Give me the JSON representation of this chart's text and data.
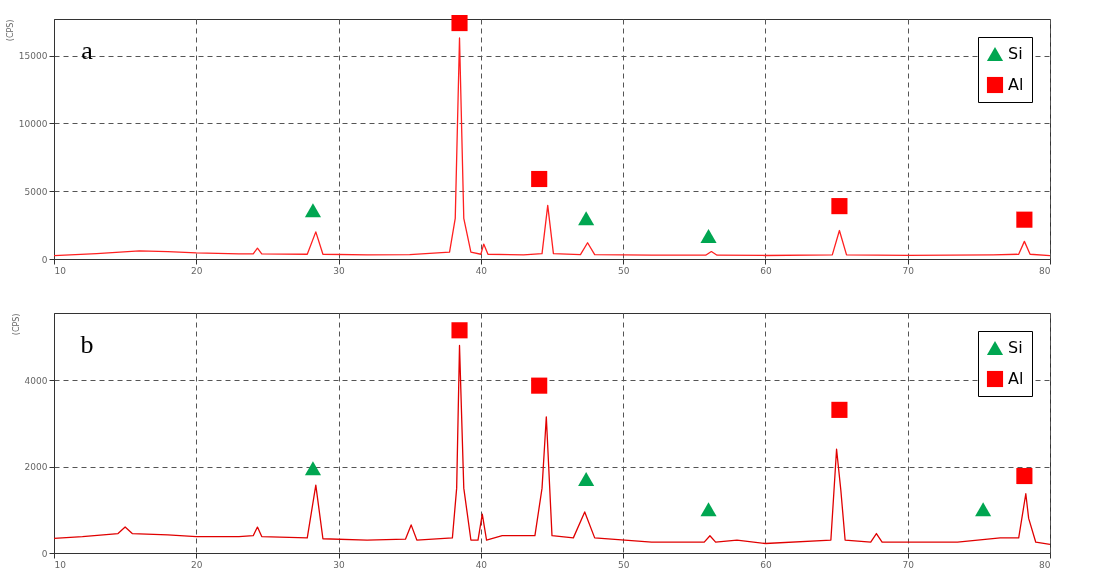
{
  "chart_data": [
    {
      "type": "line",
      "ylabel": "(CPS)",
      "annotations": [
        "a"
      ],
      "xlim": [
        10,
        80
      ],
      "ylim": [
        0,
        17700
      ],
      "xticks": [
        10,
        20,
        30,
        40,
        50,
        60,
        70,
        80
      ],
      "yticks": [
        0,
        5000,
        10000,
        15000
      ],
      "grid": true,
      "legend": "top right",
      "series": [
        {
          "color": "#ff2020",
          "x": [
            10,
            13,
            16,
            18,
            20,
            23,
            24,
            24.3,
            24.6,
            27.8,
            28.4,
            28.9,
            32,
            35,
            37.8,
            38.2,
            38.5,
            38.8,
            39.3,
            40,
            40.2,
            40.5,
            43,
            44.3,
            44.7,
            45.1,
            47,
            47.5,
            48,
            52,
            55.8,
            56.2,
            56.6,
            60,
            64.7,
            65.2,
            65.7,
            70,
            73,
            76,
            77.8,
            78.2,
            78.6,
            80
          ],
          "values": [
            250,
            400,
            600,
            550,
            450,
            380,
            380,
            800,
            380,
            350,
            2000,
            350,
            300,
            320,
            500,
            3000,
            16300,
            3000,
            500,
            350,
            1100,
            350,
            300,
            400,
            3950,
            400,
            320,
            1200,
            320,
            280,
            280,
            550,
            280,
            260,
            300,
            2100,
            300,
            260,
            280,
            300,
            350,
            1300,
            350,
            250
          ]
        },
        {
          "type": "scatter",
          "name": "Si",
          "marker": "triangle",
          "color": "#00a651",
          "x": [
            28.2,
            47.4,
            56.0
          ],
          "values": [
            3600,
            3000,
            1700
          ]
        },
        {
          "type": "scatter",
          "name": "Al",
          "marker": "square",
          "color": "#ff0000",
          "x": [
            38.5,
            44.1,
            65.2,
            78.2
          ],
          "values": [
            17400,
            5900,
            3900,
            2900
          ]
        }
      ]
    },
    {
      "type": "line",
      "ylabel": "(CPS)",
      "annotations": [
        "b"
      ],
      "xlim": [
        10,
        80
      ],
      "ylim": [
        0,
        5550
      ],
      "xticks": [
        10,
        20,
        30,
        40,
        50,
        60,
        70,
        80
      ],
      "yticks": [
        0,
        2000,
        4000
      ],
      "grid": true,
      "legend": "top right",
      "series": [
        {
          "color": "#e00000",
          "x": [
            10,
            12,
            14.5,
            15,
            15.5,
            18,
            20,
            23,
            24,
            24.3,
            24.6,
            27.8,
            28.4,
            28.9,
            32,
            34.7,
            35.1,
            35.5,
            38,
            38.3,
            38.5,
            38.8,
            39.3,
            39.8,
            40.1,
            40.4,
            41.5,
            43.8,
            44.3,
            44.6,
            45,
            46.5,
            47.3,
            48,
            52,
            55.7,
            56.1,
            56.5,
            58,
            60,
            64.6,
            65,
            65.3,
            65.6,
            67.4,
            67.8,
            68.2,
            73.5,
            76.5,
            77.8,
            78.3,
            78.5,
            79,
            80
          ],
          "values": [
            340,
            380,
            450,
            600,
            450,
            420,
            380,
            380,
            400,
            600,
            380,
            350,
            1570,
            330,
            300,
            320,
            650,
            300,
            350,
            1500,
            4800,
            1500,
            300,
            300,
            900,
            300,
            400,
            400,
            1500,
            3150,
            400,
            350,
            950,
            350,
            250,
            250,
            400,
            250,
            300,
            220,
            300,
            2400,
            1450,
            300,
            250,
            450,
            250,
            250,
            350,
            350,
            1370,
            800,
            250,
            200
          ]
        },
        {
          "type": "scatter",
          "name": "Si",
          "marker": "triangle",
          "color": "#00a651",
          "x": [
            28.2,
            47.4,
            56.0,
            75.3
          ],
          "values": [
            1960,
            1710,
            1010,
            1010
          ]
        },
        {
          "type": "scatter",
          "name": "Al",
          "marker": "square",
          "color": "#ff0000",
          "x": [
            38.5,
            44.1,
            65.2,
            78.2
          ],
          "values": [
            5150,
            3870,
            3310,
            1780
          ]
        }
      ]
    }
  ]
}
